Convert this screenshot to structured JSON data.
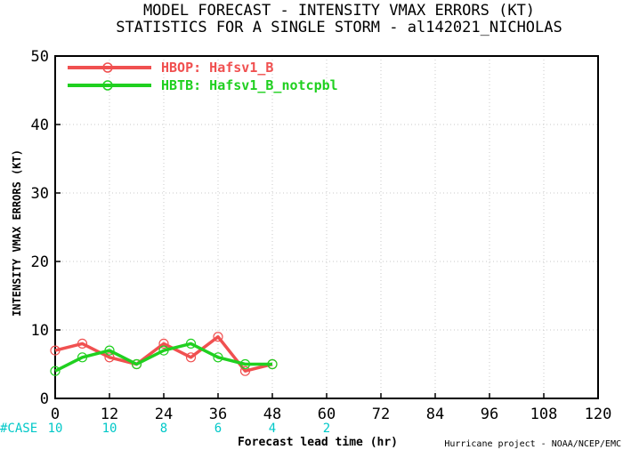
{
  "chart_data": {
    "type": "line",
    "title": "MODEL FORECAST - INTENSITY VMAX ERRORS (KT)",
    "subtitle": "STATISTICS FOR A SINGLE STORM - al142021_NICHOLAS",
    "xlabel": "Forecast lead time (hr)",
    "ylabel": "INTENSITY VMAX ERRORS (KT)",
    "xlim": [
      0,
      120
    ],
    "ylim": [
      0,
      50
    ],
    "xticks": [
      0,
      12,
      24,
      36,
      48,
      60,
      72,
      84,
      96,
      108,
      120
    ],
    "yticks": [
      0,
      10,
      20,
      30,
      40,
      50
    ],
    "grid": true,
    "legend_position": "top-left",
    "series": [
      {
        "name": "HBOP: Hafsv1_B",
        "color": "#f05050",
        "x": [
          0,
          6,
          12,
          18,
          24,
          30,
          36,
          42,
          48
        ],
        "values": [
          7,
          8,
          6,
          5,
          8,
          6,
          9,
          4,
          5
        ]
      },
      {
        "name": "HBTB: Hafsv1_B_notcpbl",
        "color": "#20d020",
        "x": [
          0,
          6,
          12,
          18,
          24,
          30,
          36,
          42,
          48
        ],
        "values": [
          4,
          6,
          7,
          5,
          7,
          8,
          6,
          5,
          5
        ]
      }
    ],
    "case_label": "#CASE",
    "case_x": [
      0,
      12,
      24,
      36,
      48,
      60
    ],
    "case_counts": [
      "10",
      "10",
      "8",
      "6",
      "4",
      "2"
    ],
    "credit": "Hurricane project - NOAA/NCEP/EMC"
  }
}
